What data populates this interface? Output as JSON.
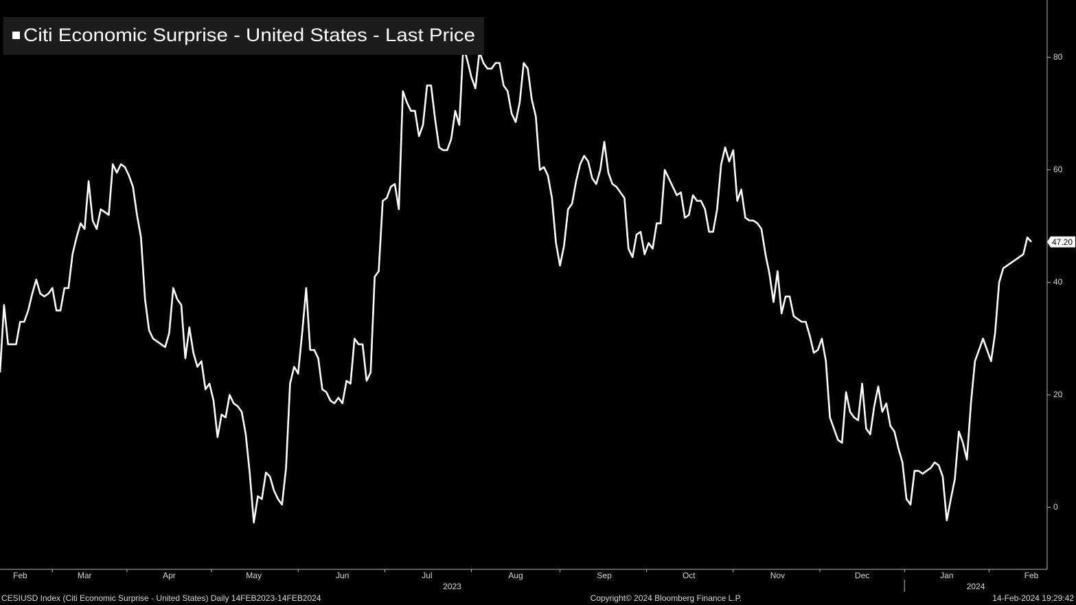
{
  "chart_data": {
    "type": "line",
    "footer_left": "CESIUSD Index (Citi Economic Surprise - United States)  Daily 14FEB2023-14FEB2024",
    "footer_center": "Copyright© 2024 Bloomberg Finance L.P.",
    "footer_right": "14-Feb-2024 19:29:42",
    "years": [
      "2023",
      "2024"
    ],
    "categories": [
      null,
      null,
      null,
      null,
      null,
      "Feb",
      null,
      null,
      null,
      null,
      null,
      null,
      null,
      null,
      null,
      null,
      null,
      null,
      null,
      null,
      null,
      "Mar",
      null,
      null,
      null,
      null,
      null,
      null,
      null,
      null,
      null,
      null,
      null,
      null,
      null,
      null,
      null,
      null,
      null,
      null,
      null,
      null,
      "Apr",
      null,
      null,
      null,
      null,
      null,
      null,
      null,
      null,
      null,
      null,
      null,
      null,
      null,
      null,
      null,
      null,
      null,
      null,
      null,
      null,
      "May",
      null,
      null,
      null,
      null,
      null,
      null,
      null,
      null,
      null,
      null,
      null,
      null,
      null,
      null,
      null,
      null,
      null,
      null,
      null,
      null,
      null,
      "Jun",
      null,
      null,
      null,
      null,
      null,
      null,
      null,
      null,
      null,
      null,
      null,
      null,
      null,
      null,
      null,
      null,
      null,
      null,
      null,
      null,
      "Jul",
      null,
      null,
      null,
      null,
      null,
      null,
      null,
      null,
      null,
      null,
      null,
      null,
      null,
      null,
      null,
      null,
      null,
      null,
      null,
      null,
      null,
      "Aug",
      null,
      null,
      null,
      null,
      null,
      null,
      null,
      null,
      null,
      null,
      null,
      null,
      null,
      null,
      null,
      null,
      null,
      null,
      null,
      null,
      null,
      "Sep",
      null,
      null,
      null,
      null,
      null,
      null,
      null,
      null,
      null,
      null,
      null,
      null,
      null,
      null,
      null,
      null,
      null,
      null,
      null,
      null,
      "Oct",
      null,
      null,
      null,
      null,
      null,
      null,
      null,
      null,
      null,
      null,
      null,
      null,
      null,
      null,
      null,
      null,
      null,
      null,
      null,
      null,
      null,
      "Nov",
      null,
      null,
      null,
      null,
      null,
      null,
      null,
      null,
      null,
      null,
      null,
      null,
      null,
      null,
      null,
      null,
      null,
      null,
      null,
      null,
      "Dec",
      null,
      null,
      null,
      null,
      null,
      null,
      null,
      null,
      null,
      null,
      null,
      null,
      null,
      null,
      null,
      null,
      null,
      null,
      null,
      null,
      "Jan",
      null,
      null,
      null,
      null,
      null,
      null,
      null,
      null,
      null,
      null,
      null,
      null,
      null,
      null,
      null,
      null,
      null,
      null,
      null,
      null,
      "Feb"
    ],
    "series": [
      {
        "name": "Citi Economic Surprise - United States - Last Price",
        "color": "#ffffff",
        "values": [
          24,
          36,
          29,
          29,
          29,
          33,
          33,
          35,
          38,
          40.5,
          38,
          37.5,
          38,
          39,
          35,
          35,
          39,
          39,
          45,
          48,
          50.5,
          49.5,
          58,
          51,
          49.5,
          53,
          52.5,
          52,
          61,
          59.5,
          61,
          60.5,
          59,
          57,
          52,
          48,
          37,
          31.5,
          30,
          29.5,
          29,
          28.5,
          31,
          39,
          37,
          36,
          26.5,
          32,
          27.5,
          25,
          26,
          21,
          22,
          19,
          12.5,
          16.5,
          16,
          20,
          18.5,
          18,
          17,
          13,
          6,
          -2.7,
          2,
          1.5,
          6.2,
          5.5,
          3,
          1.5,
          0.5,
          7,
          22,
          25,
          23.8,
          31,
          39,
          28,
          28,
          26.5,
          21,
          20.5,
          19,
          18.5,
          19.5,
          18.5,
          22.5,
          22,
          30,
          29,
          29,
          22.5,
          24,
          41,
          42,
          54.5,
          55,
          57,
          57.5,
          53,
          74,
          72,
          70.5,
          70.5,
          66,
          68,
          75,
          75,
          69,
          64,
          63.5,
          63.5,
          65.5,
          70.5,
          68,
          82,
          79.5,
          76.5,
          74.5,
          81,
          79,
          78,
          78,
          79,
          79,
          75,
          74,
          70,
          68.5,
          72,
          79,
          78,
          72.5,
          69.5,
          60,
          60.5,
          59,
          55,
          47,
          43,
          46.5,
          53,
          54,
          58,
          61,
          62.5,
          61.5,
          58.5,
          57.5,
          60,
          65,
          59.5,
          57.5,
          57,
          56,
          55,
          46,
          44.5,
          48.5,
          49,
          45,
          47,
          46,
          50.5,
          50.5,
          60,
          58.5,
          57,
          55.5,
          56,
          51.5,
          52,
          55.5,
          54.5,
          54.5,
          53,
          49,
          49,
          53,
          61,
          64,
          61.5,
          63.5,
          54.5,
          56.5,
          51.5,
          51,
          51,
          50.5,
          49.5,
          45,
          41.5,
          36.5,
          42,
          34.5,
          37.5,
          37.5,
          34,
          33.5,
          33,
          33,
          30.5,
          27.5,
          28,
          30,
          26,
          16,
          14,
          12,
          11.5,
          20.5,
          17,
          16,
          15.5,
          22,
          14,
          13,
          18,
          21.5,
          17,
          18.5,
          14.5,
          13.5,
          10.5,
          8,
          1.5,
          0.5,
          6.5,
          6.5,
          6,
          6.5,
          7,
          8,
          7.5,
          5.5,
          -2.3,
          1.5,
          5,
          13.5,
          11.5,
          8.5,
          18.5,
          26,
          28,
          30,
          28,
          26,
          31,
          40,
          42.5,
          43,
          43.5,
          44,
          44.5,
          45,
          48,
          47.2
        ]
      }
    ],
    "last_price": {
      "value": 47.2,
      "label": "47.20"
    },
    "ylim": [
      -11,
      90.2
    ],
    "yticks": [
      0,
      20,
      40,
      60,
      80
    ],
    "y_axis_side": "right"
  }
}
